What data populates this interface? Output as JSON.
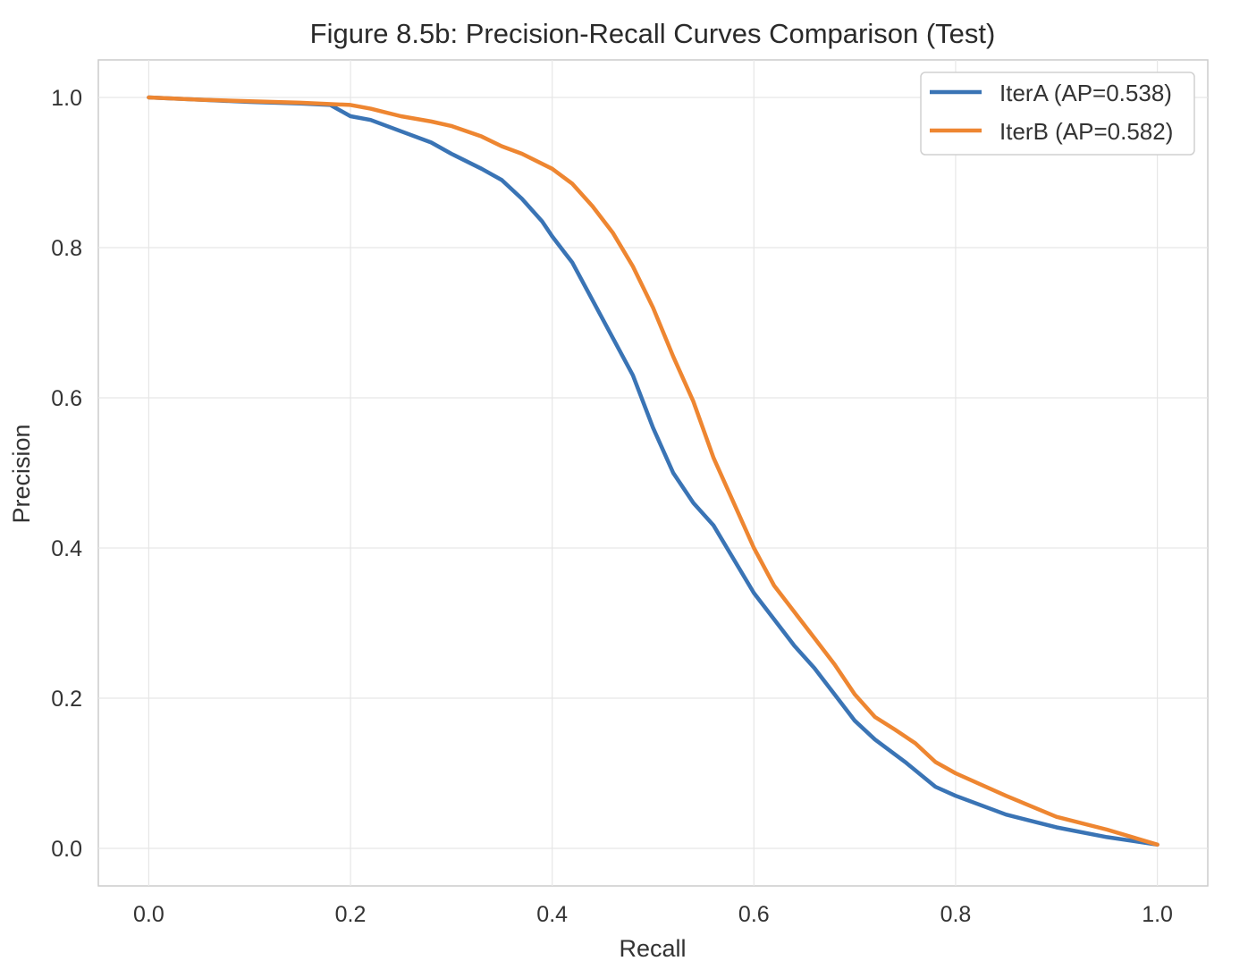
{
  "chart_data": {
    "type": "line",
    "title": "Figure 8.5b: Precision-Recall Curves Comparison (Test)",
    "xlabel": "Recall",
    "ylabel": "Precision",
    "xlim": [
      -0.05,
      1.05
    ],
    "ylim": [
      -0.05,
      1.05
    ],
    "xticks": [
      0.0,
      0.2,
      0.4,
      0.6,
      0.8,
      1.0
    ],
    "yticks": [
      0.0,
      0.2,
      0.4,
      0.6,
      0.8,
      1.0
    ],
    "xtick_labels": [
      "0.0",
      "0.2",
      "0.4",
      "0.6",
      "0.8",
      "1.0"
    ],
    "ytick_labels": [
      "0.0",
      "0.2",
      "0.4",
      "0.6",
      "0.8",
      "1.0"
    ],
    "grid": true,
    "legend_position": "top-right",
    "series": [
      {
        "name": "IterA (AP=0.538)",
        "color": "#3a74b5",
        "x": [
          0.0,
          0.05,
          0.1,
          0.15,
          0.18,
          0.2,
          0.22,
          0.25,
          0.28,
          0.3,
          0.33,
          0.35,
          0.37,
          0.39,
          0.4,
          0.42,
          0.44,
          0.46,
          0.48,
          0.5,
          0.52,
          0.54,
          0.56,
          0.58,
          0.6,
          0.62,
          0.64,
          0.66,
          0.68,
          0.7,
          0.72,
          0.75,
          0.78,
          0.8,
          0.85,
          0.9,
          0.95,
          1.0
        ],
        "y": [
          1.0,
          0.997,
          0.994,
          0.992,
          0.99,
          0.975,
          0.97,
          0.955,
          0.94,
          0.925,
          0.905,
          0.89,
          0.865,
          0.835,
          0.815,
          0.78,
          0.73,
          0.68,
          0.63,
          0.56,
          0.5,
          0.46,
          0.43,
          0.385,
          0.34,
          0.305,
          0.27,
          0.24,
          0.205,
          0.17,
          0.145,
          0.115,
          0.082,
          0.07,
          0.045,
          0.028,
          0.015,
          0.005
        ]
      },
      {
        "name": "IterB (AP=0.582)",
        "color": "#ee8631",
        "x": [
          0.0,
          0.05,
          0.1,
          0.15,
          0.2,
          0.22,
          0.25,
          0.28,
          0.3,
          0.33,
          0.35,
          0.37,
          0.4,
          0.42,
          0.44,
          0.46,
          0.48,
          0.5,
          0.52,
          0.54,
          0.56,
          0.58,
          0.6,
          0.62,
          0.64,
          0.66,
          0.68,
          0.7,
          0.72,
          0.74,
          0.76,
          0.78,
          0.8,
          0.85,
          0.9,
          0.95,
          1.0
        ],
        "y": [
          1.0,
          0.997,
          0.995,
          0.993,
          0.99,
          0.985,
          0.975,
          0.968,
          0.962,
          0.948,
          0.935,
          0.925,
          0.905,
          0.885,
          0.855,
          0.82,
          0.775,
          0.72,
          0.655,
          0.595,
          0.52,
          0.46,
          0.4,
          0.35,
          0.315,
          0.28,
          0.245,
          0.205,
          0.175,
          0.158,
          0.14,
          0.115,
          0.1,
          0.07,
          0.042,
          0.025,
          0.005
        ]
      }
    ]
  }
}
